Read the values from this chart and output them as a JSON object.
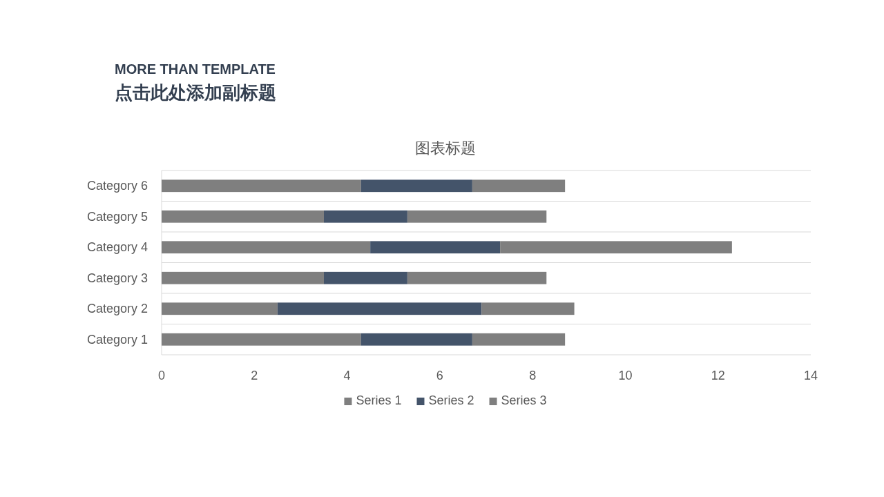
{
  "chart_data": {
    "type": "bar",
    "orientation": "horizontal",
    "stacked": true,
    "title": "图表标题",
    "annotations": [
      "MORE THAN TEMPLATE",
      "点击此处添加副标题"
    ],
    "categories": [
      "Category 6",
      "Category 5",
      "Category 4",
      "Category 3",
      "Category 2",
      "Category 1"
    ],
    "series": [
      {
        "name": "Series 1",
        "color": "#7f7f7f",
        "values": [
          4.3,
          3.5,
          4.5,
          3.5,
          2.5,
          4.3
        ]
      },
      {
        "name": "Series 2",
        "color": "#44546a",
        "values": [
          2.4,
          1.8,
          2.8,
          1.8,
          4.4,
          2.4
        ]
      },
      {
        "name": "Series 3",
        "color": "#7f7f7f",
        "values": [
          2,
          3,
          5,
          3,
          2,
          2
        ]
      }
    ],
    "xlim": [
      0,
      14
    ],
    "xticks": [
      0,
      2,
      4,
      6,
      8,
      10,
      12,
      14
    ],
    "grid": "y",
    "legend": "bottom"
  }
}
